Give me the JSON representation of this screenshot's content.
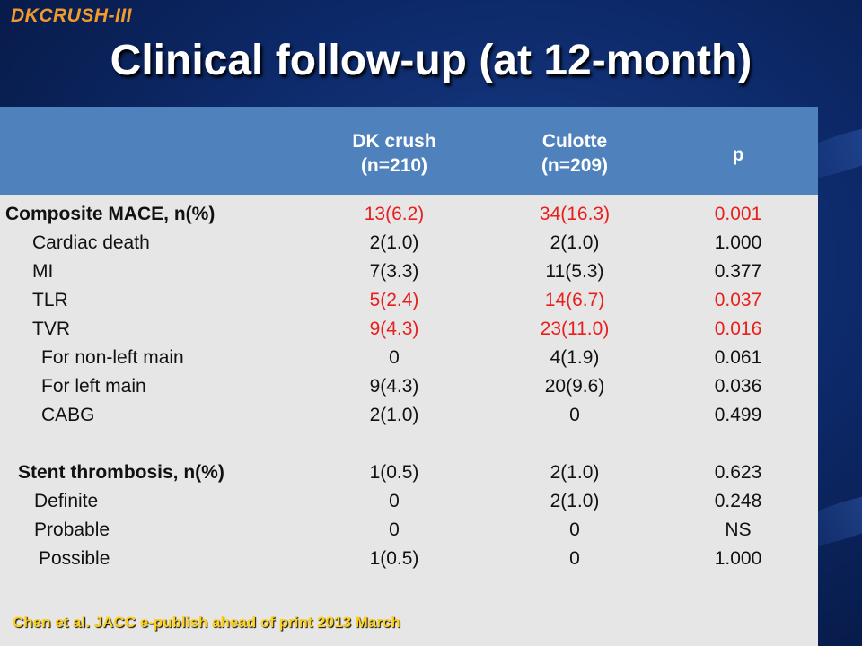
{
  "brand": "DKCRUSH-III",
  "title": "Clinical follow-up (at 12-month)",
  "header": {
    "col1_line1": "DK crush",
    "col1_line2": "(n=210)",
    "col2_line1": "Culotte",
    "col2_line2": "(n=209)",
    "col3": "p"
  },
  "rows": [
    {
      "label": "Composite MACE, n(%)",
      "dk": "13(6.2)",
      "culotte": "34(16.3)",
      "p": "0.001"
    },
    {
      "label": "Cardiac death",
      "dk": "2(1.0)",
      "culotte": "2(1.0)",
      "p": "1.000"
    },
    {
      "label": "MI",
      "dk": "7(3.3)",
      "culotte": "11(5.3)",
      "p": "0.377"
    },
    {
      "label": "TLR",
      "dk": "5(2.4)",
      "culotte": "14(6.7)",
      "p": "0.037"
    },
    {
      "label": "TVR",
      "dk": "9(4.3)",
      "culotte": "23(11.0)",
      "p": "0.016"
    },
    {
      "label": "For non-left main",
      "dk": "0",
      "culotte": "4(1.9)",
      "p": "0.061"
    },
    {
      "label": "For left main",
      "dk": "9(4.3)",
      "culotte": "20(9.6)",
      "p": "0.036"
    },
    {
      "label": "CABG",
      "dk": "2(1.0)",
      "culotte": "0",
      "p": "0.499"
    },
    {
      "label": "Stent thrombosis, n(%)",
      "dk": "1(0.5)",
      "culotte": "2(1.0)",
      "p": "0.623"
    },
    {
      "label": "Definite",
      "dk": "0",
      "culotte": "2(1.0)",
      "p": "0.248"
    },
    {
      "label": "Probable",
      "dk": "0",
      "culotte": "0",
      "p": "NS"
    },
    {
      "label": "Possible",
      "dk": "1(0.5)",
      "culotte": "0",
      "p": "1.000"
    }
  ],
  "highlight_color": "#e8201d",
  "citation": "Chen et al. JACC  e-publish ahead of print 2013 March"
}
